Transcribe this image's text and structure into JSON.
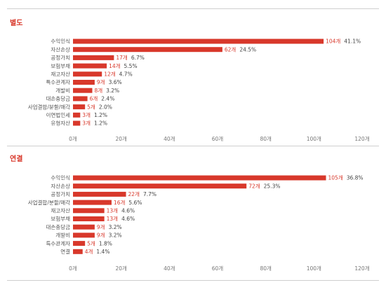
{
  "chart_data": [
    {
      "type": "bar",
      "orientation": "horizontal",
      "title": "별도",
      "categories": [
        "수익인식",
        "자산손상",
        "공정가치",
        "보험부채",
        "재고자산",
        "특수관계자",
        "개발비",
        "대손충당금",
        "사업결합/분할/매각",
        "이연법인세",
        "유형자산"
      ],
      "values": [
        104,
        62,
        17,
        14,
        12,
        9,
        8,
        6,
        5,
        3,
        3
      ],
      "value_labels": [
        "104개",
        "62개",
        "17개",
        "14개",
        "12개",
        "9개",
        "8개",
        "6개",
        "5개",
        "3개",
        "3개"
      ],
      "percent_labels": [
        "41.1%",
        "24.5%",
        "6.7%",
        "5.5%",
        "4.7%",
        "3.6%",
        "3.2%",
        "2.4%",
        "2.0%",
        "1.2%",
        "1.2%"
      ],
      "xlim": [
        0,
        120
      ],
      "x_ticks": [
        0,
        20,
        40,
        60,
        80,
        100,
        120
      ],
      "x_tick_labels": [
        "0개",
        "20개",
        "40개",
        "60개",
        "80개",
        "100개",
        "120개"
      ],
      "bar_color": "#d8382b"
    },
    {
      "type": "bar",
      "orientation": "horizontal",
      "title": "연결",
      "categories": [
        "수익인식",
        "자산손상",
        "공정가치",
        "사업결합/분할/매각",
        "재고자산",
        "보험부채",
        "대손충당금",
        "개발비",
        "특수관계자",
        "연결"
      ],
      "values": [
        105,
        72,
        22,
        16,
        13,
        13,
        9,
        9,
        5,
        4
      ],
      "value_labels": [
        "105개",
        "72개",
        "22개",
        "16개",
        "13개",
        "13개",
        "9개",
        "9개",
        "5개",
        "4개"
      ],
      "percent_labels": [
        "36.8%",
        "25.3%",
        "7.7%",
        "5.6%",
        "4.6%",
        "4.6%",
        "3.2%",
        "3.2%",
        "1.8%",
        "1.4%"
      ],
      "xlim": [
        0,
        120
      ],
      "x_ticks": [
        0,
        20,
        40,
        60,
        80,
        100,
        120
      ],
      "x_tick_labels": [
        "0개",
        "20개",
        "40개",
        "60개",
        "80개",
        "100개",
        "120개"
      ],
      "bar_color": "#d8382b"
    }
  ]
}
